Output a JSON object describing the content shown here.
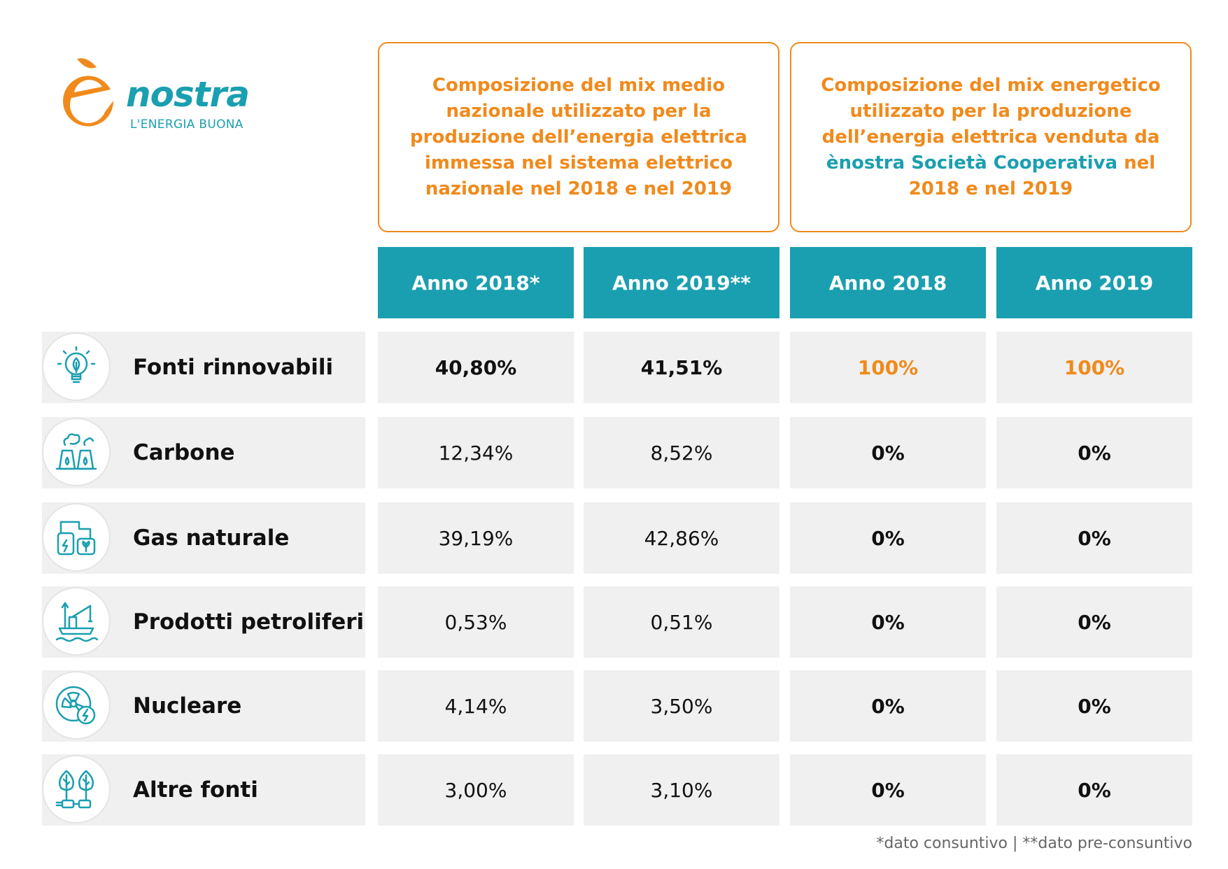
{
  "logo": {
    "text": "ènostra",
    "tagline": "L'ENERGIA BUONA"
  },
  "boxes": {
    "left": "Composizione del mix medio nazionale utilizzato per la produzione dell’energia elettrica immessa nel sistema elettrico nazionale nel 2018 e nel 2019",
    "right_pre": "Composizione del mix energetico utilizzato per la produzione dell’energia elettrica venduta da ",
    "right_company": "ènostra Società Cooperativa",
    "right_post": " nel 2018 e nel 2019"
  },
  "columns": [
    "Anno 2018*",
    "Anno 2019**",
    "Anno 2018",
    "Anno 2019"
  ],
  "rows": [
    {
      "icon": "lightbulb-leaf-icon",
      "label": "Fonti rinnovabili",
      "values": [
        "40,80%",
        "41,51%",
        "100%",
        "100%"
      ]
    },
    {
      "icon": "coal-plant-icon",
      "label": "Carbone",
      "values": [
        "12,34%",
        "8,52%",
        "0%",
        "0%"
      ]
    },
    {
      "icon": "gas-plant-icon",
      "label": "Gas naturale",
      "values": [
        "39,19%",
        "42,86%",
        "0%",
        "0%"
      ]
    },
    {
      "icon": "oil-rig-icon",
      "label": "Prodotti petroliferi",
      "values": [
        "0,53%",
        "0,51%",
        "0%",
        "0%"
      ]
    },
    {
      "icon": "nuclear-icon",
      "label": "Nucleare",
      "values": [
        "4,14%",
        "3,50%",
        "0%",
        "0%"
      ]
    },
    {
      "icon": "leaves-plug-icon",
      "label": "Altre fonti",
      "values": [
        "3,00%",
        "3,10%",
        "0%",
        "0%"
      ]
    }
  ],
  "footnote": "*dato consuntivo  |  **dato pre-consuntivo",
  "colors": {
    "teal": "#1a9fb0",
    "orange": "#f08a1c",
    "row_bg": "#f0f0f0"
  }
}
